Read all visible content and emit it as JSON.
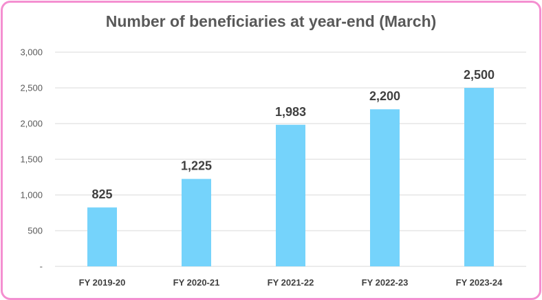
{
  "chart_data": {
    "type": "bar",
    "title": "Number of beneficiaries at year-end (March)",
    "categories": [
      "FY 2019-20",
      "FY 2020-21",
      "FY 2021-22",
      "FY 2022-23",
      "FY 2023-24"
    ],
    "values": [
      825,
      1225,
      1983,
      2200,
      2500
    ],
    "data_labels": [
      "825",
      "1,225",
      "1,983",
      "2,200",
      "2,500"
    ],
    "ylim": [
      0,
      3000
    ],
    "yticks": [
      0,
      500,
      1000,
      1500,
      2000,
      2500,
      3000
    ],
    "ytick_labels": [
      "-",
      "500",
      "1,000",
      "1,500",
      "2,000",
      "2,500",
      "3,000"
    ],
    "xlabel": "",
    "ylabel": "",
    "grid": true,
    "legend": "none",
    "bar_color": "#75d3fb",
    "grid_color": "#d9d9d9",
    "border_color": "#f48fd0"
  }
}
